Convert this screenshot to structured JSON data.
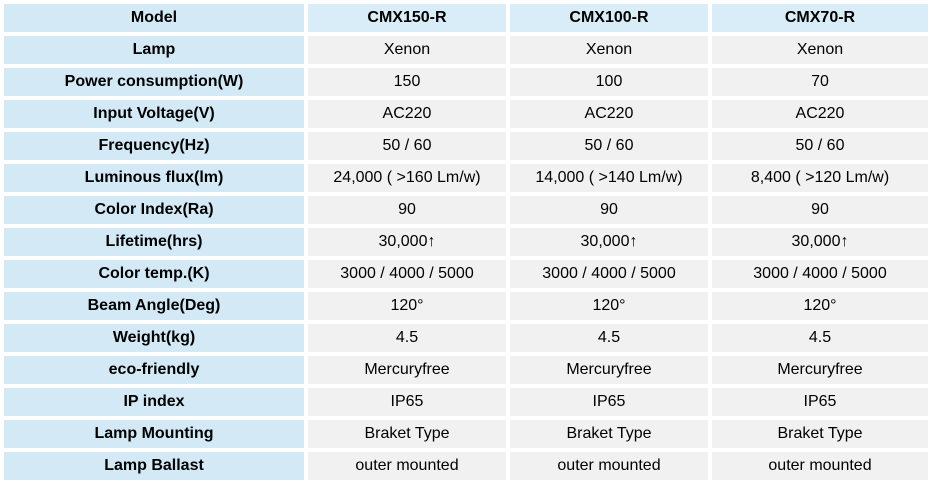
{
  "table": {
    "header": {
      "label": "Model",
      "models": [
        "CMX150-R",
        "CMX100-R",
        "CMX70-R"
      ]
    },
    "rows": [
      {
        "label": "Lamp",
        "values": [
          "Xenon",
          "Xenon",
          "Xenon"
        ]
      },
      {
        "label": "Power consumption(W)",
        "values": [
          "150",
          "100",
          "70"
        ]
      },
      {
        "label": "Input Voltage(V)",
        "values": [
          "AC220",
          "AC220",
          "AC220"
        ]
      },
      {
        "label": "Frequency(Hz)",
        "values": [
          "50 / 60",
          "50 / 60",
          "50 / 60"
        ]
      },
      {
        "label": "Luminous flux(lm)",
        "values": [
          "24,000 ( >160 Lm/w)",
          "14,000 ( >140 Lm/w)",
          "8,400 ( >120 Lm/w)"
        ]
      },
      {
        "label": "Color Index(Ra)",
        "values": [
          "90",
          "90",
          "90"
        ]
      },
      {
        "label": "Lifetime(hrs)",
        "values": [
          "30,000↑",
          "30,000↑",
          "30,000↑"
        ]
      },
      {
        "label": "Color temp.(K)",
        "values": [
          "3000 / 4000 / 5000",
          "3000 / 4000 / 5000",
          "3000 / 4000 / 5000"
        ]
      },
      {
        "label": "Beam Angle(Deg)",
        "values": [
          "120°",
          "120°",
          "120°"
        ]
      },
      {
        "label": "Weight(kg)",
        "values": [
          "4.5",
          "4.5",
          "4.5"
        ]
      },
      {
        "label": "eco-friendly",
        "values": [
          "Mercuryfree",
          "Mercuryfree",
          "Mercuryfree"
        ]
      },
      {
        "label": "IP index",
        "values": [
          "IP65",
          "IP65",
          "IP65"
        ]
      },
      {
        "label": "Lamp Mounting",
        "values": [
          "Braket Type",
          "Braket Type",
          "Braket Type"
        ]
      },
      {
        "label": "Lamp Ballast",
        "values": [
          "outer mounted",
          "outer mounted",
          "outer mounted"
        ]
      }
    ],
    "colors": {
      "header_bg": "#d9edf8",
      "label_column_bg": "#d3eaf6",
      "value_cell_bg": "#f1f1f1",
      "grid_gap": "#ffffff",
      "text": "#000000"
    }
  }
}
